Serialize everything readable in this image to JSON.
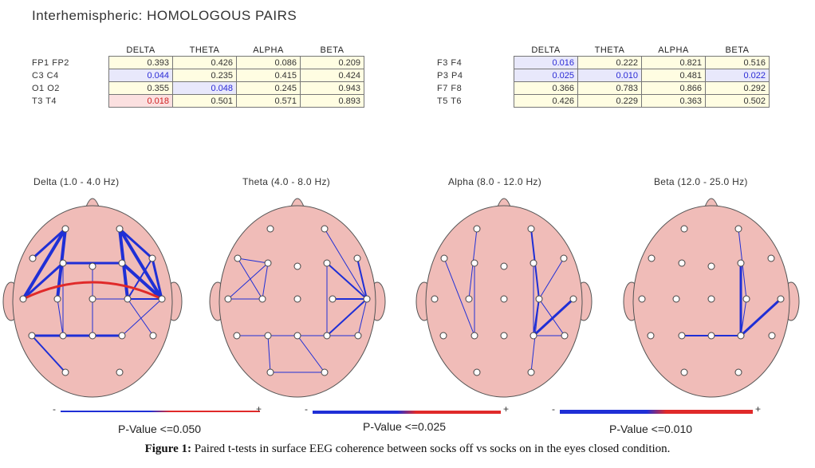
{
  "title": "Interhemispheric:  HOMOLOGOUS PAIRS",
  "table_headers": [
    "DELTA",
    "THETA",
    "ALPHA",
    "BETA"
  ],
  "table_left": [
    {
      "label": "FP1  FP2",
      "values": [
        "0.393",
        "0.426",
        "0.086",
        "0.209"
      ],
      "hl": [
        "",
        "",
        "",
        ""
      ]
    },
    {
      "label": "C3  C4",
      "values": [
        "0.044",
        "0.235",
        "0.415",
        "0.424"
      ],
      "hl": [
        "blue",
        "",
        "",
        ""
      ]
    },
    {
      "label": "O1  O2",
      "values": [
        "0.355",
        "0.048",
        "0.245",
        "0.943"
      ],
      "hl": [
        "",
        "blue",
        "",
        ""
      ]
    },
    {
      "label": "T3  T4",
      "values": [
        "0.018",
        "0.501",
        "0.571",
        "0.893"
      ],
      "hl": [
        "pink",
        "",
        "",
        ""
      ]
    }
  ],
  "table_right": [
    {
      "label": "F3  F4",
      "values": [
        "0.016",
        "0.222",
        "0.821",
        "0.516"
      ],
      "hl": [
        "blue",
        "",
        "",
        ""
      ]
    },
    {
      "label": "P3  P4",
      "values": [
        "0.025",
        "0.010",
        "0.481",
        "0.022"
      ],
      "hl": [
        "blue",
        "blue",
        "",
        "blue"
      ]
    },
    {
      "label": "F7  F8",
      "values": [
        "0.366",
        "0.783",
        "0.866",
        "0.292"
      ],
      "hl": [
        "",
        "",
        "",
        ""
      ]
    },
    {
      "label": "T5  T6",
      "values": [
        "0.426",
        "0.229",
        "0.363",
        "0.502"
      ],
      "hl": [
        "",
        "",
        "",
        ""
      ]
    }
  ],
  "bands": [
    "Delta (1.0 - 4.0 Hz)",
    "Theta (4.0 - 8.0 Hz)",
    "Alpha (8.0 - 12.0 Hz)",
    "Beta (12.0 - 25.0 Hz)"
  ],
  "legend": {
    "minus": "-",
    "plus": "+",
    "pvalues": [
      "P-Value <=0.050",
      "P-Value <=0.025",
      "P-Value <=0.010"
    ],
    "neg_color": "#1f2fd6",
    "pos_color": "#e02a2a"
  },
  "colors": {
    "head_fill": "#f0bcb8",
    "head_stroke": "#555555",
    "line_blue": "#1f2fd6",
    "line_red": "#e02a2a"
  },
  "caption": {
    "label": "Figure 1:",
    "text": " Paired t-tests in surface EEG coherence between socks off vs socks on in the eyes closed condition."
  }
}
